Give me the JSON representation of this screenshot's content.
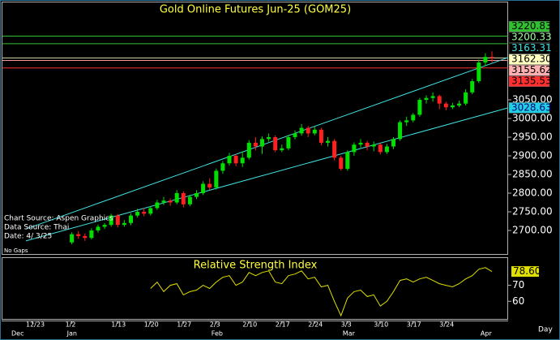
{
  "chart_data": [
    {
      "type": "candlestick",
      "title": "Gold Online Futures Jun-25 (GOM25)",
      "annotations": [
        "Chart Source: Aspen Graphics",
        "Data Source: Thai",
        "Date:  4/ 3/25",
        "No Gaps",
        "Day"
      ],
      "categories": [
        "12/23",
        null,
        null,
        null,
        null,
        null,
        "1/2",
        null,
        null,
        null,
        null,
        null,
        null,
        "1/13",
        null,
        null,
        null,
        null,
        "1/20",
        null,
        null,
        null,
        null,
        "1/27",
        null,
        null,
        null,
        null,
        "2/3",
        null,
        null,
        null,
        null,
        "2/10",
        null,
        null,
        null,
        null,
        "2/17",
        null,
        null,
        null,
        null,
        "2/24",
        null,
        null,
        null,
        null,
        "3/3",
        null,
        null,
        null,
        null,
        "3/10",
        null,
        null,
        null,
        null,
        "3/17",
        null,
        null,
        null,
        null,
        "3/24",
        null,
        null,
        null,
        null,
        null,
        null,
        null
      ],
      "months": [
        "Dec",
        null,
        null,
        null,
        null,
        null,
        "Jan",
        null,
        null,
        null,
        null,
        null,
        null,
        null,
        null,
        null,
        null,
        null,
        null,
        null,
        null,
        null,
        null,
        null,
        null,
        null,
        null,
        null,
        "Feb",
        null,
        null,
        null,
        null,
        null,
        null,
        null,
        null,
        null,
        null,
        null,
        null,
        null,
        null,
        null,
        null,
        null,
        null,
        null,
        "Mar",
        null,
        null,
        null,
        null,
        null,
        null,
        null,
        null,
        null,
        null,
        null,
        null,
        null,
        null,
        null,
        null,
        null,
        null,
        null,
        null,
        "Apr",
        null
      ],
      "open": [
        null,
        null,
        null,
        null,
        null,
        null,
        2668,
        2690,
        2685,
        2680,
        2700,
        2710,
        2715,
        2740,
        2715,
        2720,
        2740,
        2750,
        2745,
        2760,
        2775,
        2780,
        2775,
        2800,
        2770,
        2790,
        2800,
        2825,
        2815,
        2860,
        2880,
        2900,
        2880,
        2895,
        2935,
        2925,
        2945,
        2950,
        2915,
        2920,
        2950,
        2960,
        2975,
        2960,
        2970,
        2935,
        2940,
        2895,
        2865,
        2910,
        2930,
        2935,
        2925,
        2930,
        2910,
        2925,
        2945,
        2990,
        2995,
        3010,
        3050,
        3055,
        3060,
        3040,
        3030,
        3035,
        3040,
        3070,
        3100,
        3150,
        3165
      ],
      "high": [
        null,
        null,
        null,
        null,
        null,
        null,
        2695,
        2698,
        2692,
        2706,
        2716,
        2720,
        2745,
        2744,
        2728,
        2746,
        2758,
        2760,
        2765,
        2782,
        2790,
        2786,
        2808,
        2805,
        2796,
        2808,
        2832,
        2840,
        2866,
        2886,
        2908,
        2905,
        2912,
        2942,
        2950,
        2952,
        2960,
        2955,
        2930,
        2956,
        2968,
        2985,
        2980,
        2978,
        2975,
        2950,
        2945,
        2900,
        2915,
        2936,
        2945,
        2940,
        2938,
        2934,
        2932,
        2950,
        2995,
        3005,
        3015,
        3055,
        3062,
        3070,
        3064,
        3045,
        3042,
        3048,
        3078,
        3106,
        3158,
        3175,
        3180
      ],
      "low": [
        null,
        null,
        null,
        null,
        null,
        null,
        2663,
        2678,
        2672,
        2676,
        2694,
        2704,
        2710,
        2708,
        2710,
        2714,
        2735,
        2738,
        2740,
        2755,
        2768,
        2766,
        2770,
        2762,
        2765,
        2784,
        2795,
        2808,
        2810,
        2852,
        2874,
        2872,
        2870,
        2890,
        2915,
        2905,
        2938,
        2910,
        2910,
        2915,
        2944,
        2954,
        2950,
        2955,
        2928,
        2925,
        2888,
        2860,
        2860,
        2900,
        2922,
        2915,
        2912,
        2904,
        2905,
        2918,
        2940,
        2980,
        2990,
        3005,
        3040,
        3045,
        3025,
        3022,
        3025,
        3030,
        3035,
        3065,
        3095,
        3140,
        3150
      ],
      "close": [
        null,
        null,
        null,
        null,
        null,
        null,
        2690,
        2685,
        2680,
        2700,
        2710,
        2715,
        2740,
        2715,
        2720,
        2740,
        2750,
        2745,
        2760,
        2775,
        2780,
        2775,
        2800,
        2770,
        2790,
        2800,
        2825,
        2815,
        2860,
        2880,
        2900,
        2880,
        2895,
        2935,
        2925,
        2945,
        2950,
        2915,
        2920,
        2950,
        2960,
        2975,
        2960,
        2970,
        2935,
        2940,
        2895,
        2865,
        2910,
        2930,
        2935,
        2925,
        2930,
        2910,
        2925,
        2945,
        2990,
        2995,
        3010,
        3050,
        3055,
        3060,
        3040,
        3030,
        3035,
        3040,
        3070,
        3100,
        3150,
        3165,
        3162.3
      ],
      "up_color": "#00e000",
      "down_color": "#ff2020",
      "ylim": [
        2637,
        3311
      ],
      "yticks": [
        {
          "value": 2700,
          "label": "2700.00"
        },
        {
          "value": 2750,
          "label": "2750.00"
        },
        {
          "value": 2800,
          "label": "2800.00"
        },
        {
          "value": 2850,
          "label": "2850.00"
        },
        {
          "value": 2900,
          "label": "2900.00"
        },
        {
          "value": 2950,
          "label": "2950.00"
        },
        {
          "value": 3000,
          "label": "3000.00"
        },
        {
          "value": 3050,
          "label": "3050.00"
        }
      ],
      "levels": [
        {
          "value": 3220.83,
          "label": "3220.83",
          "color": "#30c030",
          "bg": "#30c030",
          "fg": "#000000"
        },
        {
          "value": 3200.33,
          "label": "3200.33",
          "color": "#30c030",
          "bg": "#000000",
          "fg": "#a0ffa0"
        },
        {
          "value": 3162.3,
          "label": "3162.30",
          "color": "#d8d8b0",
          "bg": "#ffffc0",
          "fg": "#000000"
        },
        {
          "value": 3155.62,
          "label": "3155.62",
          "color": "#ff9090",
          "bg": "#ffb0b0",
          "fg": "#000000"
        },
        {
          "value": 3135.53,
          "label": "3135.53",
          "color": "#ff3030",
          "bg": "#ff3030",
          "fg": "#000000"
        }
      ],
      "trendlines": [
        {
          "color": "#40e0e0",
          "start_x": "12/31",
          "start": 2704,
          "end": {
            "value": 3163.31,
            "label": "3163.31"
          },
          "bg": "#000000",
          "fg": "#40e0e0"
        },
        {
          "color": "#40e0e0",
          "start_x": "12/31",
          "start": 2672,
          "end": {
            "value": 3028.63,
            "label": "3028.63"
          },
          "bg": "#20d0e0",
          "fg": "#000080"
        }
      ]
    },
    {
      "type": "line",
      "title": "Relative Strength Index",
      "color": "#e0e000",
      "values": [
        null,
        null,
        null,
        null,
        null,
        null,
        null,
        null,
        null,
        null,
        null,
        null,
        null,
        null,
        null,
        null,
        null,
        null,
        68,
        72,
        66,
        70,
        71,
        64,
        66,
        67,
        70,
        68,
        72,
        75,
        76,
        70,
        72,
        78,
        76,
        78,
        79,
        72,
        71,
        76,
        77,
        79,
        74,
        75,
        69,
        70,
        60,
        51,
        62,
        66,
        67,
        63,
        64,
        57,
        60,
        66,
        73,
        74,
        72,
        74,
        75,
        73,
        71,
        70,
        69,
        71,
        74,
        76,
        80,
        81,
        78.6
      ],
      "ylim": [
        49,
        87
      ],
      "yticks": [
        60,
        70
      ],
      "last_value": {
        "value": 78.6,
        "label": "78.60"
      }
    }
  ]
}
